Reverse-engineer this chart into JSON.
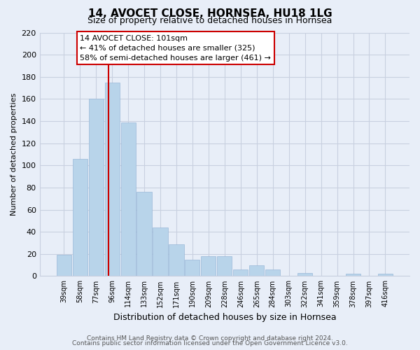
{
  "title": "14, AVOCET CLOSE, HORNSEA, HU18 1LG",
  "subtitle": "Size of property relative to detached houses in Hornsea",
  "xlabel": "Distribution of detached houses by size in Hornsea",
  "ylabel": "Number of detached properties",
  "categories": [
    "39sqm",
    "58sqm",
    "77sqm",
    "96sqm",
    "114sqm",
    "133sqm",
    "152sqm",
    "171sqm",
    "190sqm",
    "209sqm",
    "228sqm",
    "246sqm",
    "265sqm",
    "284sqm",
    "303sqm",
    "322sqm",
    "341sqm",
    "359sqm",
    "378sqm",
    "397sqm",
    "416sqm"
  ],
  "values": [
    19,
    106,
    160,
    175,
    139,
    76,
    44,
    29,
    15,
    18,
    18,
    6,
    10,
    6,
    0,
    3,
    0,
    0,
    2,
    0,
    2
  ],
  "bar_color": "#b8d4ea",
  "bar_edge_color": "#9ab8d8",
  "vline_x": 3.0,
  "vline_color": "#cc0000",
  "ylim": [
    0,
    220
  ],
  "yticks": [
    0,
    20,
    40,
    60,
    80,
    100,
    120,
    140,
    160,
    180,
    200,
    220
  ],
  "annotation_title": "14 AVOCET CLOSE: 101sqm",
  "annotation_line1": "← 41% of detached houses are smaller (325)",
  "annotation_line2": "58% of semi-detached houses are larger (461) →",
  "annotation_box_color": "#ffffff",
  "annotation_box_edge": "#cc0000",
  "footer1": "Contains HM Land Registry data © Crown copyright and database right 2024.",
  "footer2": "Contains public sector information licensed under the Open Government Licence v3.0.",
  "background_color": "#e8eef8",
  "grid_color": "#c8d0e0"
}
